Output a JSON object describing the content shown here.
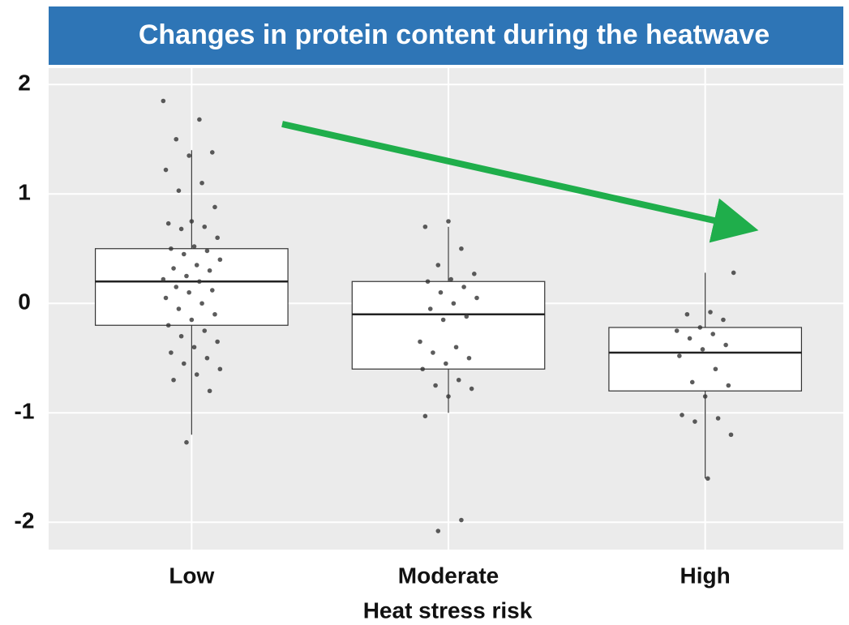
{
  "chart_data": {
    "type": "box",
    "title": "Changes in protein content during the heatwave",
    "x_label": "Heat stress risk",
    "categories": [
      "Low",
      "Moderate",
      "High"
    ],
    "boxes": [
      {
        "min": -1.2,
        "q1": -0.2,
        "median": 0.2,
        "q3": 0.5,
        "max": 1.4,
        "points": [
          1.85,
          1.68,
          1.5,
          1.38,
          1.35,
          1.22,
          1.1,
          1.03,
          0.88,
          0.75,
          0.73,
          0.7,
          0.68,
          0.6,
          0.52,
          0.5,
          0.48,
          0.45,
          0.4,
          0.35,
          0.32,
          0.3,
          0.25,
          0.22,
          0.2,
          0.15,
          0.12,
          0.1,
          0.05,
          0.0,
          -0.05,
          -0.1,
          -0.15,
          -0.2,
          -0.25,
          -0.3,
          -0.35,
          -0.4,
          -0.45,
          -0.5,
          -0.55,
          -0.6,
          -0.65,
          -0.7,
          -0.8,
          -1.27
        ]
      },
      {
        "min": -1.0,
        "q1": -0.6,
        "median": -0.1,
        "q3": 0.2,
        "max": 0.7,
        "points": [
          0.75,
          0.7,
          0.5,
          0.35,
          0.27,
          0.22,
          0.2,
          0.15,
          0.1,
          0.05,
          0.0,
          -0.05,
          -0.12,
          -0.15,
          -0.35,
          -0.4,
          -0.45,
          -0.5,
          -0.55,
          -0.6,
          -0.7,
          -0.75,
          -0.78,
          -0.85,
          -1.03,
          -1.98,
          -2.08
        ]
      },
      {
        "min": -1.6,
        "q1": -0.8,
        "median": -0.45,
        "q3": -0.22,
        "max": 0.28,
        "points": [
          0.28,
          -0.08,
          -0.1,
          -0.15,
          -0.22,
          -0.25,
          -0.28,
          -0.32,
          -0.38,
          -0.42,
          -0.48,
          -0.6,
          -0.72,
          -0.75,
          -0.85,
          -1.02,
          -1.05,
          -1.08,
          -1.2,
          -1.6
        ]
      }
    ],
    "ylim": [
      -2.25,
      2.15
    ],
    "yticks": [
      -2,
      -1,
      0,
      1,
      2
    ],
    "grid": true,
    "box_color": "#ffffff",
    "point_color": "#333333",
    "title_bg": "#2e75b6"
  }
}
